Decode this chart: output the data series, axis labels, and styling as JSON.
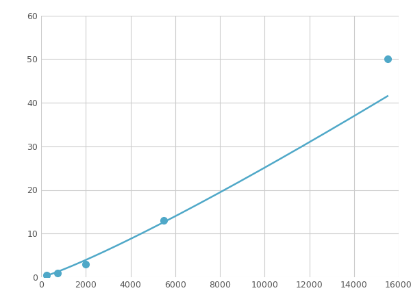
{
  "x_points": [
    250,
    750,
    2000,
    5500,
    15500
  ],
  "y_points": [
    0.5,
    1.0,
    3.0,
    13.0,
    50.0
  ],
  "line_color": "#4FA8C8",
  "marker_color": "#4FA8C8",
  "marker_size": 7,
  "line_width": 1.8,
  "xlim": [
    0,
    16000
  ],
  "ylim": [
    0,
    60
  ],
  "xticks": [
    0,
    2000,
    4000,
    6000,
    8000,
    10000,
    12000,
    14000,
    16000
  ],
  "yticks": [
    0,
    10,
    20,
    30,
    40,
    50,
    60
  ],
  "grid_color": "#cccccc",
  "background_color": "#ffffff",
  "title": "",
  "xlabel": "",
  "ylabel": ""
}
